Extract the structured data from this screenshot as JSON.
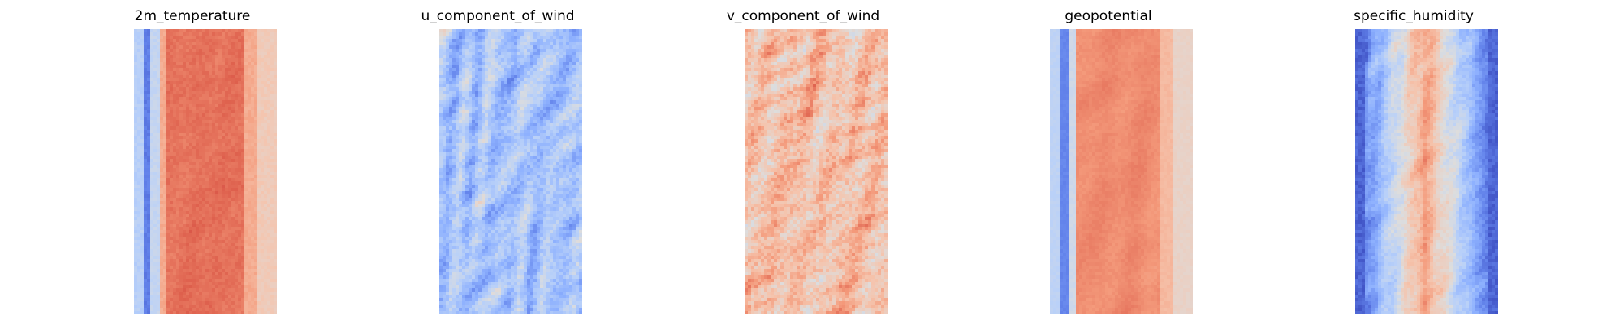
{
  "chart_data": [
    {
      "type": "heatmap",
      "title": "2m_temperature",
      "colormap": "coolwarm",
      "axes": "off",
      "colorbar": false,
      "grid": false,
      "pattern": "warm-core band with cool western edge and light margins"
    },
    {
      "type": "heatmap",
      "title": "u_component_of_wind",
      "colormap": "coolwarm",
      "axes": "off",
      "colorbar": false,
      "grid": false,
      "pattern": "mostly cool blue field with scattered light red streaks"
    },
    {
      "type": "heatmap",
      "title": "v_component_of_wind",
      "colormap": "coolwarm",
      "axes": "off",
      "colorbar": false,
      "grid": false,
      "pattern": "mostly warm light-red field with isolated blue eddies"
    },
    {
      "type": "heatmap",
      "title": "geopotential",
      "colormap": "coolwarm",
      "axes": "off",
      "colorbar": false,
      "grid": false,
      "pattern": "smooth warm interior with cool blue west edge"
    },
    {
      "type": "heatmap",
      "title": "specific_humidity",
      "colormap": "coolwarm",
      "axes": "off",
      "colorbar": false,
      "grid": false,
      "pattern": "deep blue margins with narrow red central plume"
    }
  ],
  "colors": {
    "low": "#3b4cc0",
    "mid": "#dddddd",
    "high": "#b40426",
    "background": "#ffffff"
  }
}
